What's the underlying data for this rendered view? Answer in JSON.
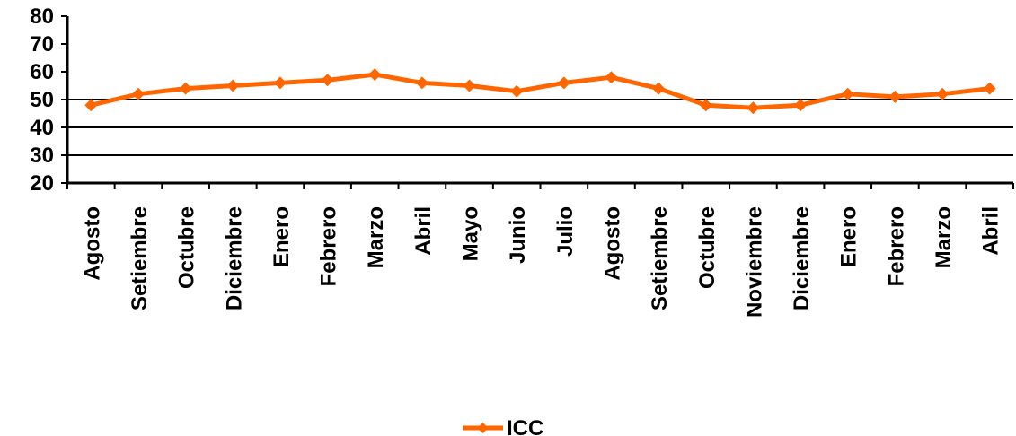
{
  "chart_data": {
    "type": "line",
    "categories": [
      "Agosto",
      "Setiembre",
      "Octubre",
      "Diciembre",
      "Enero",
      "Febrero",
      "Marzo",
      "Abril",
      "Mayo",
      "Junio",
      "Julio",
      "Agosto",
      "Setiembre",
      "Octubre",
      "Noviembre",
      "Diciembre",
      "Enero",
      "Febrero",
      "Marzo",
      "Abril"
    ],
    "series": [
      {
        "name": "ICC",
        "values": [
          48,
          52,
          54,
          55,
          56,
          57,
          59,
          56,
          55,
          53,
          56,
          58,
          54,
          48,
          47,
          48,
          52,
          51,
          52,
          54
        ]
      }
    ],
    "ylim": [
      20,
      80
    ],
    "yticks": [
      "20",
      "30",
      "40",
      "50",
      "60",
      "70",
      "80"
    ],
    "gridlines_at": [
      30,
      40,
      50
    ],
    "legend_position": "bottom",
    "colors": {
      "series": "#FF6600",
      "axis": "#000000"
    }
  }
}
